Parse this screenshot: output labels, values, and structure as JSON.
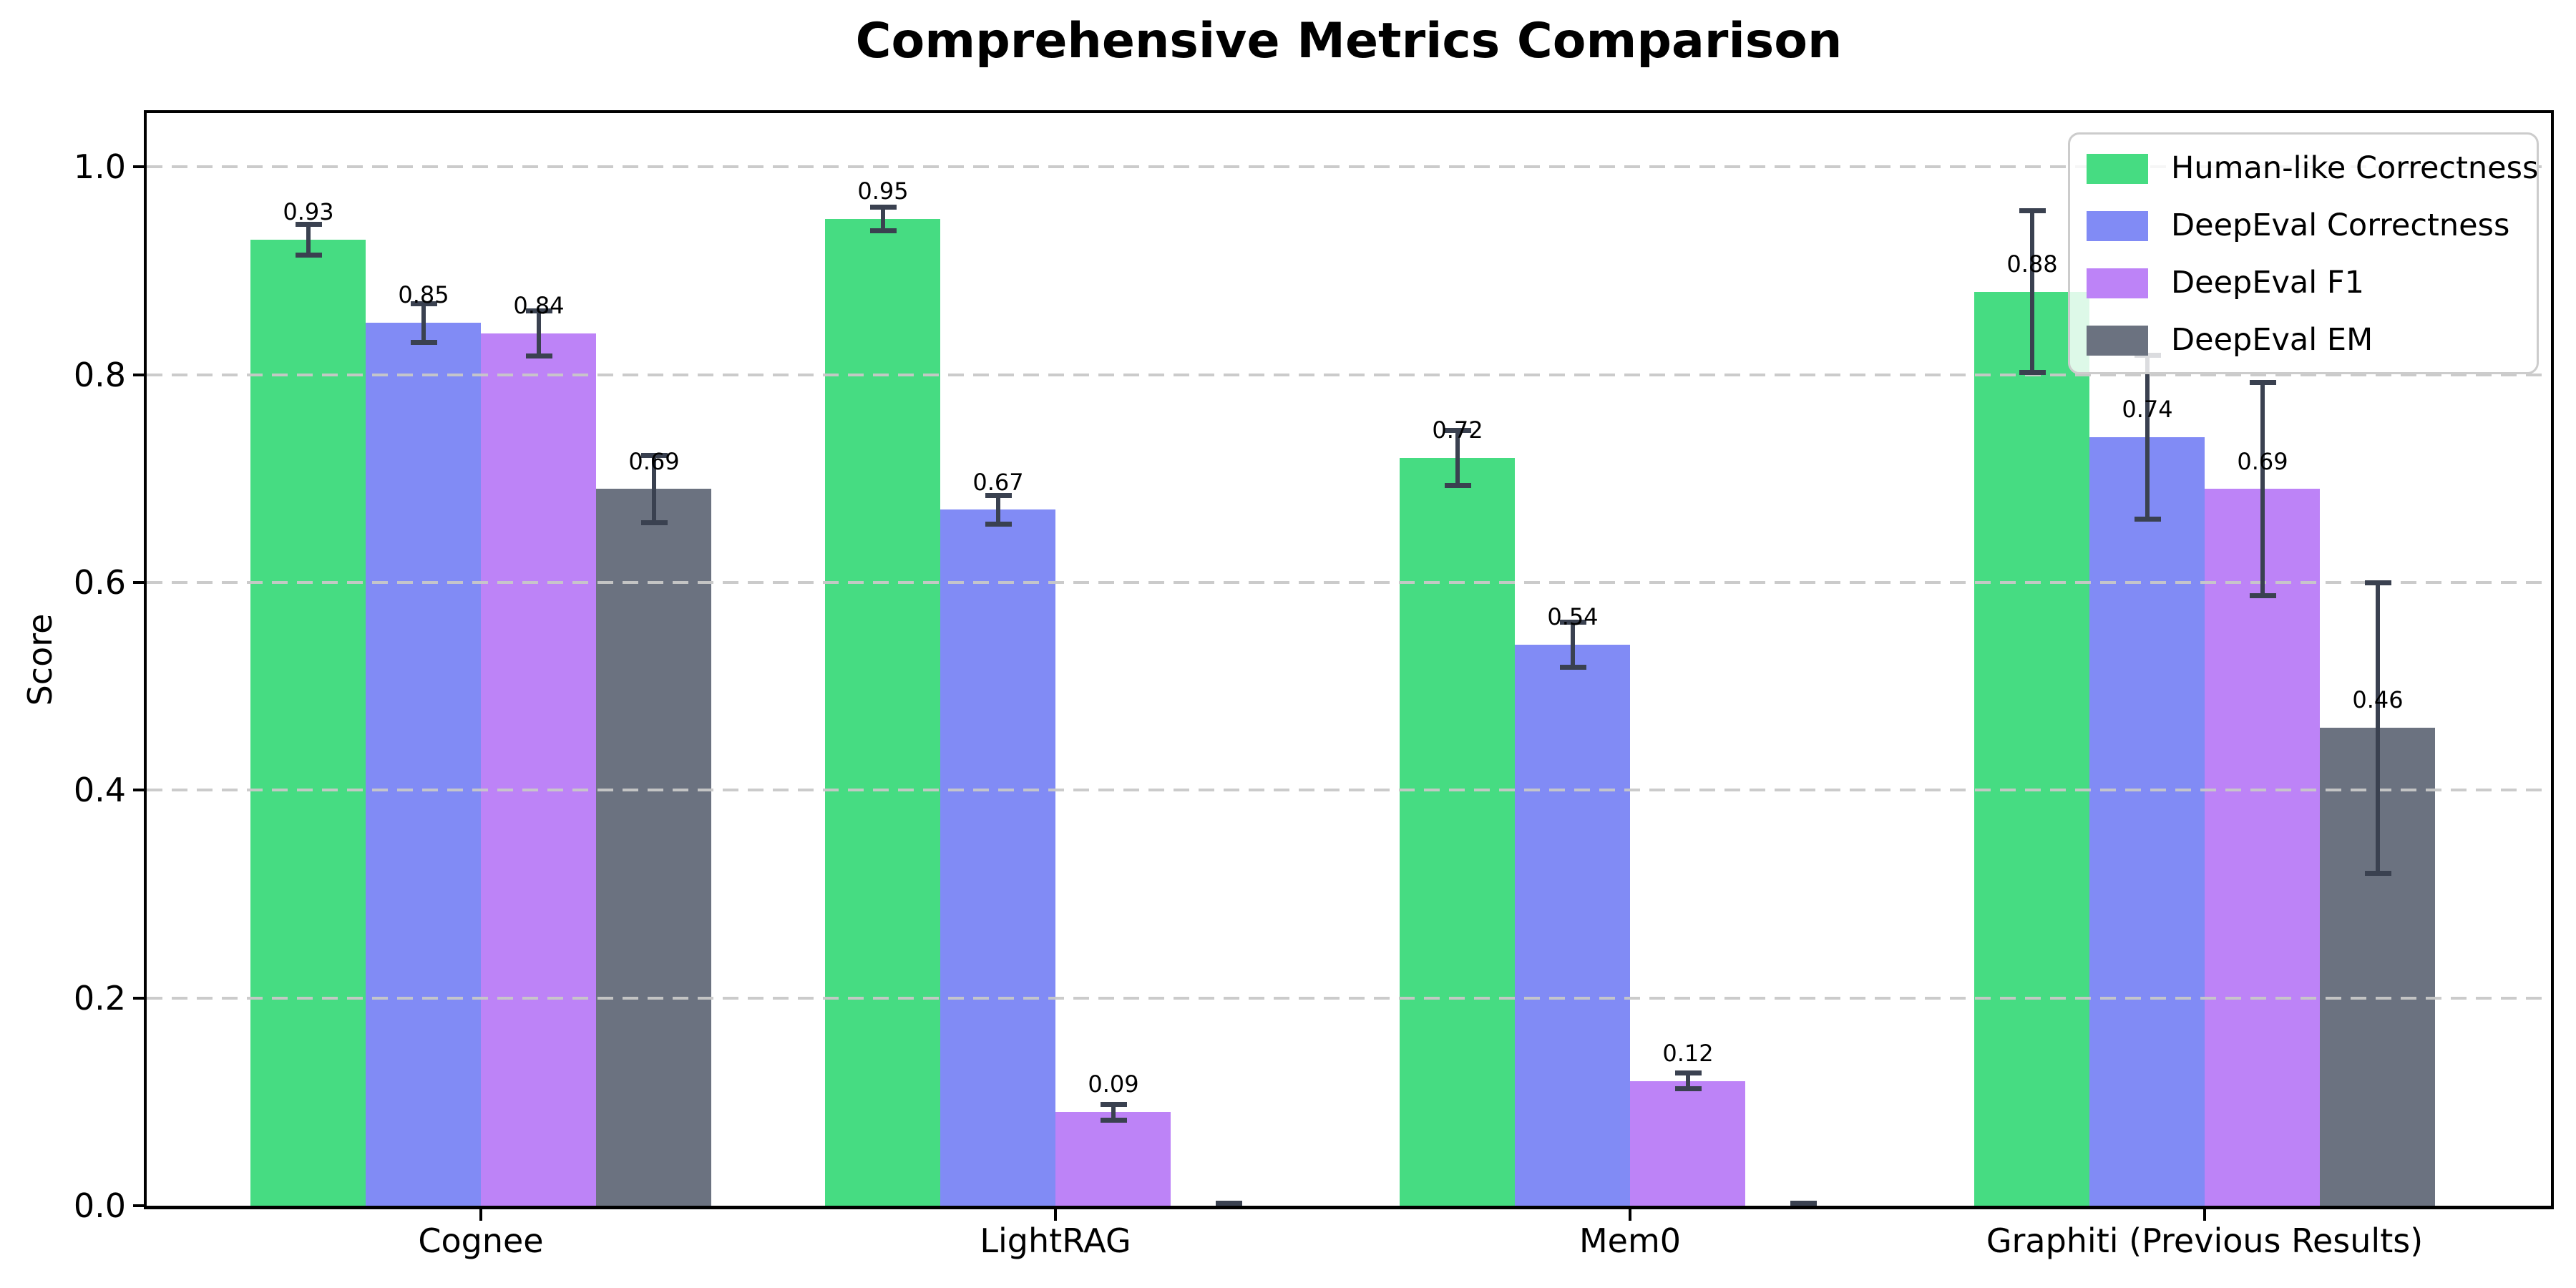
{
  "chart_data": {
    "type": "bar",
    "title": "Comprehensive Metrics Comparison",
    "ylabel": "Score",
    "xlabel": "",
    "categories": [
      "Cognee",
      "LightRAG",
      "Mem0",
      "Graphiti (Previous Results)"
    ],
    "series": [
      {
        "name": "Human-like Correctness",
        "color": "#46dc82",
        "values": [
          0.93,
          0.95,
          0.72,
          0.88
        ],
        "errors": [
          0.015,
          0.012,
          0.027,
          0.078
        ],
        "labels": [
          "0.93",
          "0.95",
          "0.72",
          "0.88"
        ]
      },
      {
        "name": "DeepEval Correctness",
        "color": "#818bf5",
        "values": [
          0.85,
          0.67,
          0.54,
          0.74
        ],
        "errors": [
          0.019,
          0.014,
          0.022,
          0.079
        ],
        "labels": [
          "0.85",
          "0.67",
          "0.54",
          "0.74"
        ]
      },
      {
        "name": "DeepEval F1",
        "color": "#bd83f7",
        "values": [
          0.84,
          0.09,
          0.12,
          0.69
        ],
        "errors": [
          0.022,
          0.008,
          0.008,
          0.103
        ],
        "labels": [
          "0.84",
          "0.09",
          "0.12",
          "0.69"
        ]
      },
      {
        "name": "DeepEval EM",
        "color": "#6b7280",
        "values": [
          0.69,
          0.0,
          0.0,
          0.46
        ],
        "errors": [
          0.033,
          0.003,
          0.003,
          0.14
        ],
        "labels": [
          "0.69",
          "",
          "",
          "0.46"
        ]
      }
    ],
    "yticks": [
      "0.0",
      "0.2",
      "0.4",
      "0.6",
      "0.8",
      "1.0"
    ],
    "ytick_values": [
      0.0,
      0.2,
      0.4,
      0.6,
      0.8,
      1.0
    ],
    "ylim": [
      0,
      1.05
    ],
    "grid": "dashed-horizontal",
    "legend_position": "upper right",
    "error_bars": true,
    "colors": {
      "axis": "#000000",
      "error_bar": "#3a4150",
      "gridline": "#c8c8c8",
      "legend_border": "#cccccc",
      "background": "#ffffff"
    }
  }
}
